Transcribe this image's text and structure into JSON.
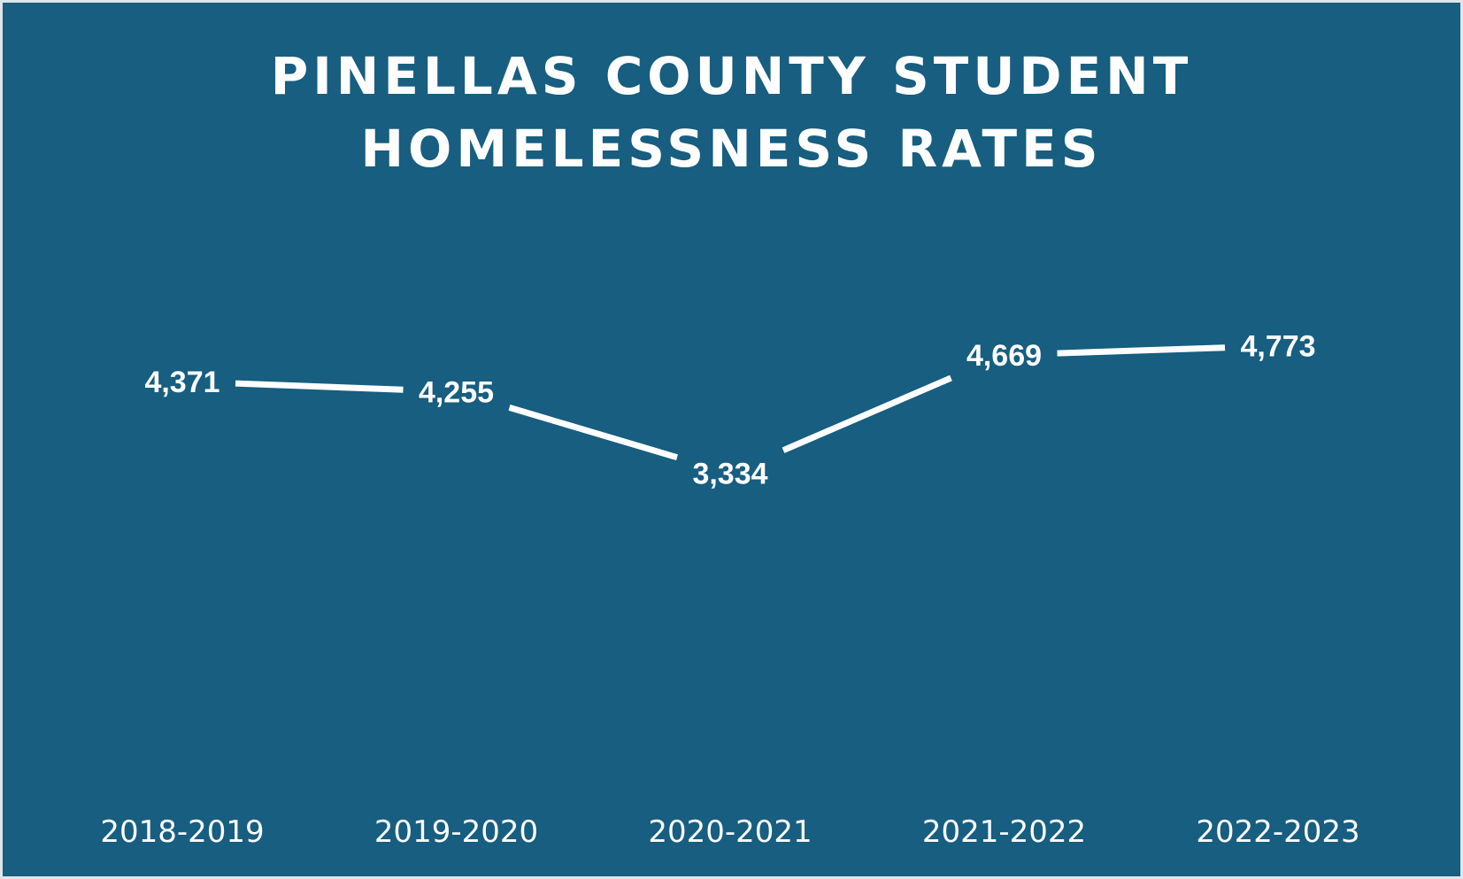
{
  "title_lines": [
    "PINELLAS COUNTY STUDENT",
    "HOMELESSNESS RATES"
  ],
  "colors": {
    "background": "#175e80",
    "border": "#dfe6ea",
    "line": "#ffffff",
    "text": "#ffffff"
  },
  "chart_data": {
    "type": "line",
    "title": "PINELLAS COUNTY STUDENT HOMELESSNESS RATES",
    "categories": [
      "2018-2019",
      "2019-2020",
      "2020-2021",
      "2021-2022",
      "2022-2023"
    ],
    "values": [
      4371,
      4255,
      3334,
      4669,
      4773
    ],
    "data_labels": [
      "4,371",
      "4,255",
      "3,334",
      "4,669",
      "4,773"
    ],
    "xlabel": "",
    "ylabel": "",
    "ylim": [
      0,
      5000
    ],
    "grid": false,
    "legend": "none",
    "drop_lines": true
  }
}
